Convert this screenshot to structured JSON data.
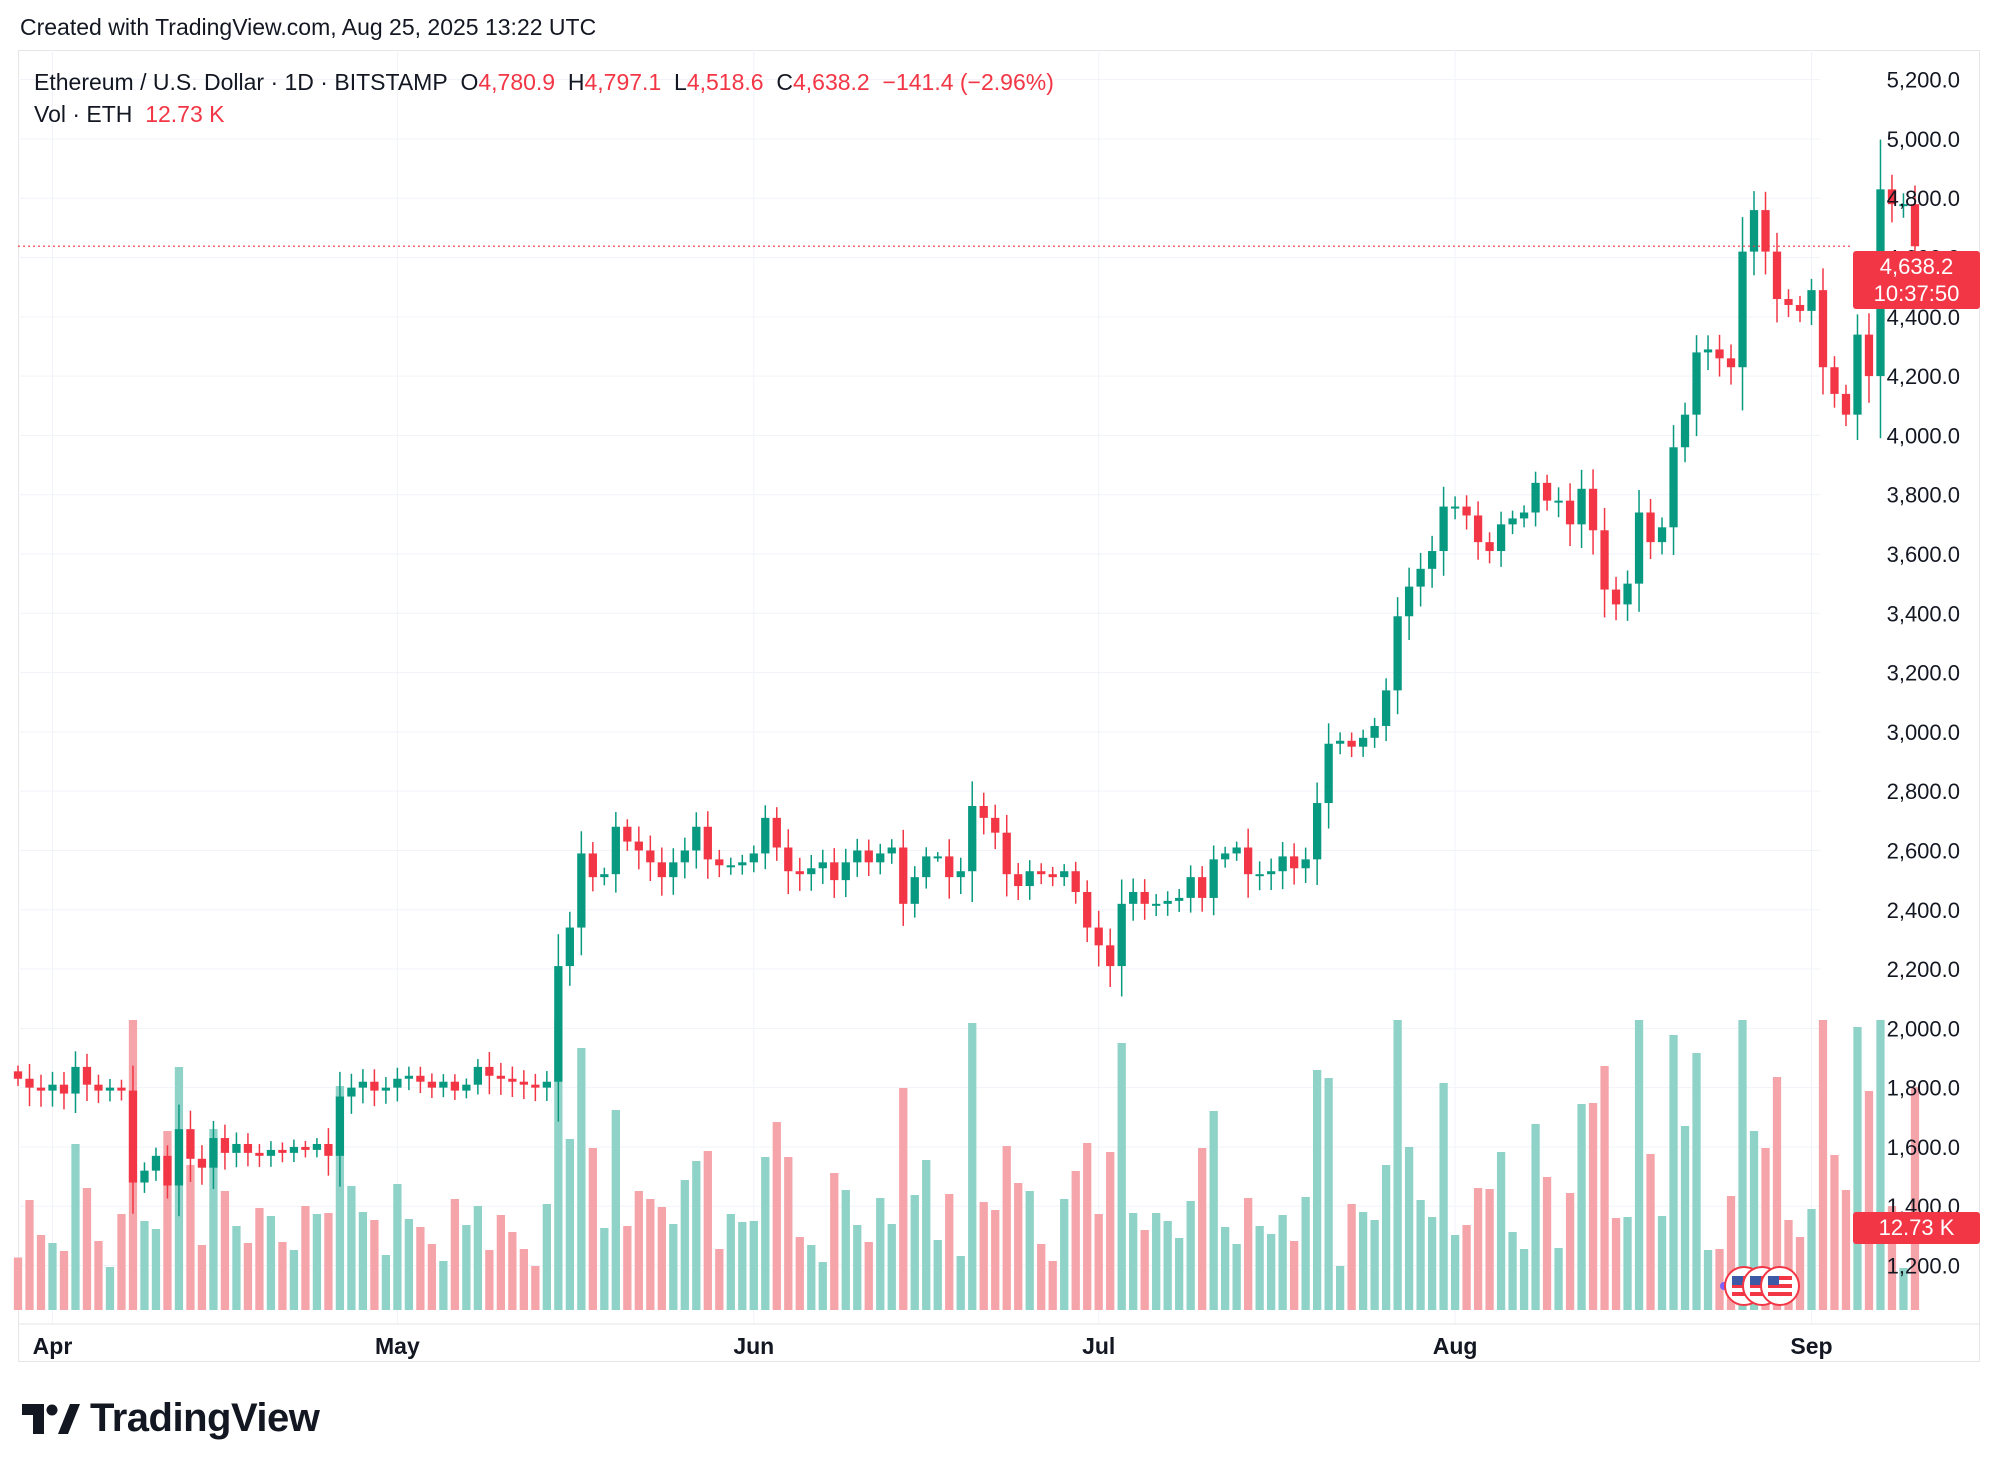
{
  "header": {
    "created_line": "Created with TradingView.com, Aug 25, 2025 13:22 UTC"
  },
  "legend": {
    "symbol": "Ethereum / U.S. Dollar · 1D · BITSTAMP",
    "o_label": "O",
    "o_value": "4,780.9",
    "h_label": "H",
    "h_value": "4,797.1",
    "l_label": "L",
    "l_value": "4,518.6",
    "c_label": "C",
    "c_value": "4,638.2",
    "change": "−141.4 (−2.96%)",
    "vol_label": "Vol · ETH",
    "vol_value": "12.73 K"
  },
  "price_tag": {
    "price": "4,638.2",
    "countdown": "10:37:50"
  },
  "volume_tag": "12.73 K",
  "brand": {
    "name": "TradingView"
  },
  "colors": {
    "up": "#089981",
    "down": "#f23645",
    "vol_up": "#8fd2c7",
    "vol_down": "#f5a4a9",
    "grid": "#f0f3fa"
  },
  "chart_data": {
    "type": "candlestick",
    "symbol": "ETH/USD",
    "interval": "1D",
    "exchange": "BITSTAMP",
    "x_range": [
      "2025-03-29",
      "2025-08-31"
    ],
    "ylim": [
      1050,
      5300
    ],
    "y_ticks": [
      "1,200.0",
      "1,400.0",
      "1,600.0",
      "1,800.0",
      "2,000.0",
      "2,200.0",
      "2,400.0",
      "2,600.0",
      "2,800.0",
      "3,000.0",
      "3,200.0",
      "3,400.0",
      "3,600.0",
      "3,800.0",
      "4,000.0",
      "4,200.0",
      "4,400.0",
      "4,600.0",
      "4,800.0",
      "5,000.0",
      "5,200.0"
    ],
    "x_ticks": [
      {
        "label": "Apr",
        "date": "2025-04-01"
      },
      {
        "label": "May",
        "date": "2025-05-01"
      },
      {
        "label": "Jun",
        "date": "2025-06-01"
      },
      {
        "label": "Jul",
        "date": "2025-07-01"
      },
      {
        "label": "Aug",
        "date": "2025-08-01"
      },
      {
        "label": "Sep",
        "date": "2025-09-01"
      }
    ],
    "last_price": 4638.2,
    "grid": true,
    "closes": [
      1830,
      1800,
      1790,
      1810,
      1780,
      1870,
      1810,
      1790,
      1800,
      1790,
      1480,
      1520,
      1570,
      1470,
      1660,
      1560,
      1530,
      1630,
      1580,
      1610,
      1580,
      1570,
      1590,
      1580,
      1600,
      1590,
      1610,
      1570,
      1770,
      1800,
      1820,
      1790,
      1800,
      1830,
      1840,
      1820,
      1800,
      1820,
      1790,
      1810,
      1870,
      1840,
      1830,
      1820,
      1810,
      1800,
      1820,
      2210,
      2340,
      2590,
      2510,
      2520,
      2680,
      2630,
      2600,
      2560,
      2510,
      2560,
      2600,
      2680,
      2570,
      2550,
      2550,
      2560,
      2590,
      2710,
      2610,
      2530,
      2520,
      2540,
      2560,
      2500,
      2560,
      2600,
      2560,
      2590,
      2610,
      2420,
      2510,
      2580,
      2580,
      2510,
      2530,
      2750,
      2710,
      2660,
      2520,
      2480,
      2530,
      2520,
      2510,
      2530,
      2460,
      2340,
      2280,
      2210,
      2420,
      2460,
      2420,
      2420,
      2430,
      2440,
      2510,
      2440,
      2570,
      2590,
      2610,
      2520,
      2520,
      2530,
      2580,
      2540,
      2570,
      2760,
      2960,
      2970,
      2950,
      2980,
      3020,
      3140,
      3390,
      3490,
      3550,
      3610,
      3760,
      3760,
      3730,
      3640,
      3610,
      3700,
      3720,
      3740,
      3840,
      3780,
      3780,
      3700,
      3820,
      3680,
      3480,
      3430,
      3500,
      3740,
      3640,
      3690,
      3960,
      4070,
      4280,
      4290,
      4260,
      4230,
      4620,
      4760,
      4620,
      4460,
      4440,
      4420,
      4490,
      4230,
      4140,
      4070,
      4340,
      4200,
      4830,
      4780,
      4780,
      4638
    ]
  }
}
